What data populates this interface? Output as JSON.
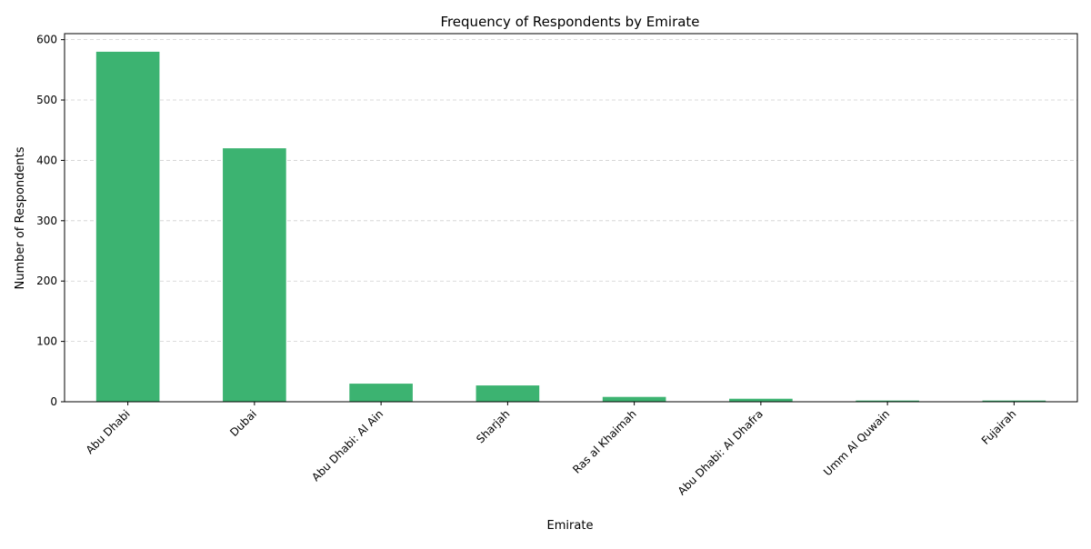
{
  "chart_data": {
    "type": "bar",
    "title": "Frequency of Respondents by Emirate",
    "xlabel": "Emirate",
    "ylabel": "Number of Respondents",
    "categories": [
      "Abu Dhabi",
      "Dubai",
      "Abu Dhabi: Al Ain",
      "Sharjah",
      "Ras al Khaimah",
      "Abu Dhabi: Al Dhafra",
      "Umm Al Quwain",
      "Fujairah"
    ],
    "values": [
      580,
      420,
      30,
      27,
      8,
      5,
      2,
      2
    ],
    "ylim": [
      0,
      610
    ],
    "yticks": [
      0,
      100,
      200,
      300,
      400,
      500,
      600
    ],
    "grid": "y-dashed",
    "legend": "none",
    "bar_color": "#3cb371",
    "x_tick_rotation_deg": 45
  }
}
